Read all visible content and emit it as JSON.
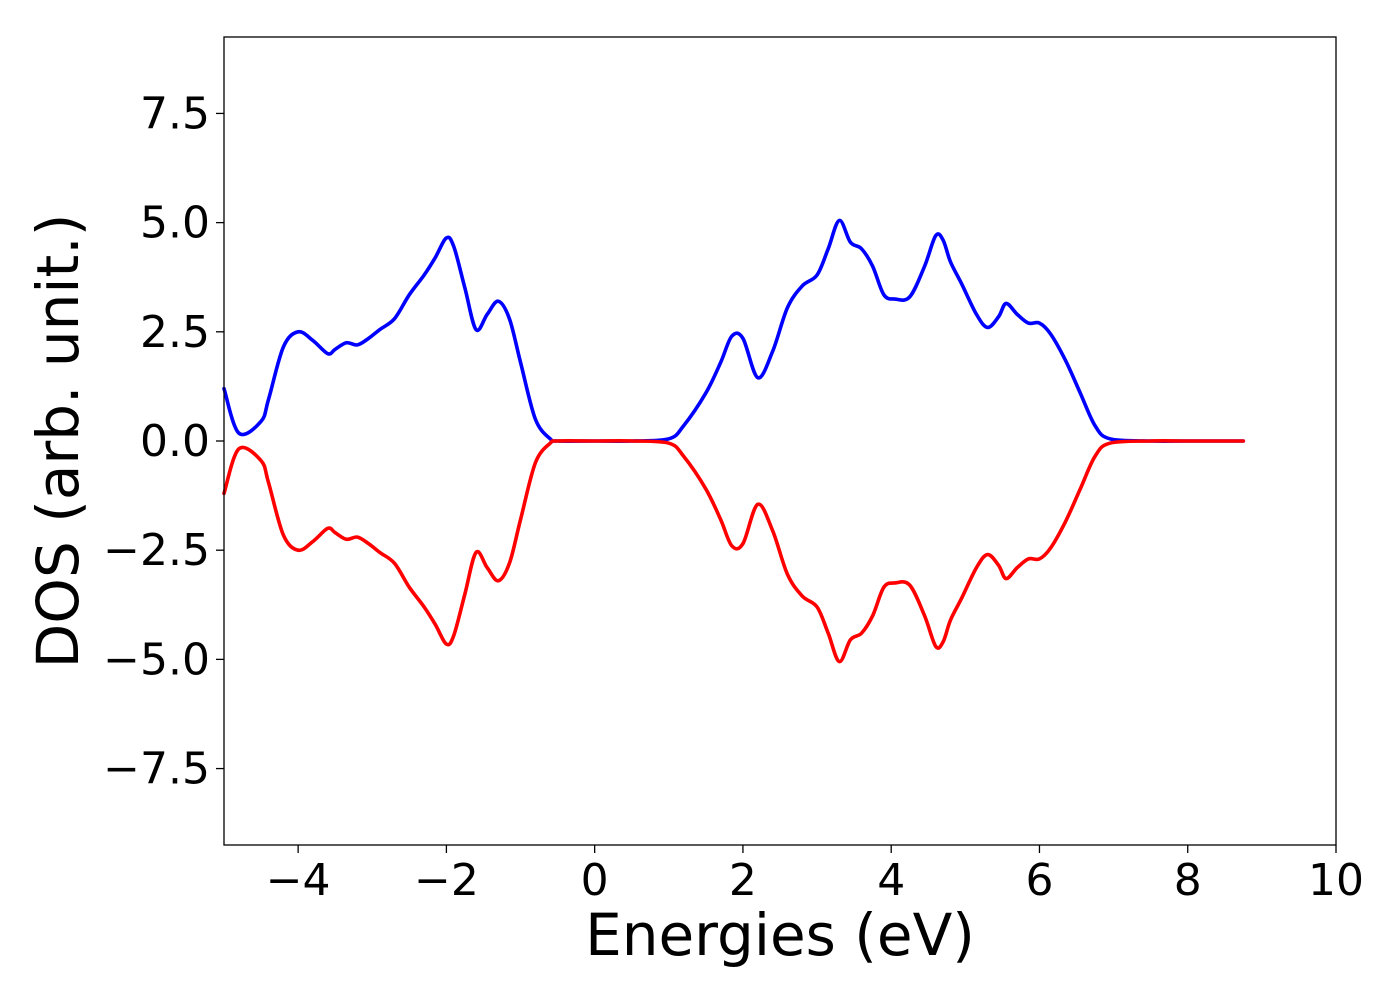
{
  "chart_data": {
    "type": "line",
    "title": "",
    "xlabel": "Energies (eV)",
    "ylabel": "DOS (arb. unit.)",
    "xlim": [
      -5,
      10
    ],
    "ylim": [
      -9.25,
      9.25
    ],
    "grid": false,
    "legend": "none",
    "x_ticks": [
      -4,
      -2,
      0,
      2,
      4,
      6,
      8,
      10
    ],
    "x_tick_labels": [
      "−4",
      "−2",
      "0",
      "2",
      "4",
      "6",
      "8",
      "10"
    ],
    "y_ticks": [
      7.5,
      5.0,
      2.5,
      0.0,
      -2.5,
      -5.0,
      -7.5
    ],
    "y_tick_labels": [
      "7.5",
      "5.0",
      "2.5",
      "0.0",
      "−2.5",
      "−5.0",
      "−7.5"
    ],
    "x": [
      -5.0,
      -4.8,
      -4.5,
      -4.4,
      -4.2,
      -4.0,
      -3.8,
      -3.6,
      -3.5,
      -3.35,
      -3.2,
      -3.05,
      -2.9,
      -2.7,
      -2.5,
      -2.3,
      -2.15,
      -2.0,
      -1.9,
      -1.75,
      -1.6,
      -1.45,
      -1.3,
      -1.15,
      -1.0,
      -0.8,
      -0.6,
      -0.5,
      0.0,
      0.5,
      1.0,
      1.2,
      1.5,
      1.7,
      1.85,
      2.0,
      2.2,
      2.4,
      2.6,
      2.8,
      3.0,
      3.15,
      3.3,
      3.45,
      3.6,
      3.75,
      3.9,
      4.05,
      4.25,
      4.45,
      4.6,
      4.7,
      4.8,
      4.95,
      5.15,
      5.3,
      5.45,
      5.55,
      5.7,
      5.85,
      6.0,
      6.15,
      6.35,
      6.55,
      6.75,
      6.95,
      7.5,
      8.0,
      8.75
    ],
    "series": [
      {
        "color": "#0000ff",
        "values": [
          1.2,
          0.18,
          0.45,
          0.95,
          2.15,
          2.5,
          2.3,
          2.0,
          2.1,
          2.25,
          2.2,
          2.35,
          2.55,
          2.8,
          3.35,
          3.8,
          4.2,
          4.65,
          4.45,
          3.5,
          2.55,
          2.9,
          3.2,
          2.8,
          1.8,
          0.5,
          0.05,
          0.0,
          0.0,
          0.0,
          0.05,
          0.35,
          1.1,
          1.8,
          2.4,
          2.35,
          1.45,
          2.05,
          3.05,
          3.55,
          3.8,
          4.4,
          5.05,
          4.55,
          4.4,
          4.0,
          3.35,
          3.25,
          3.3,
          4.0,
          4.7,
          4.6,
          4.1,
          3.6,
          2.9,
          2.6,
          2.85,
          3.15,
          2.9,
          2.7,
          2.7,
          2.45,
          1.85,
          1.1,
          0.35,
          0.05,
          0.0,
          0.0,
          0.0
        ]
      },
      {
        "color": "#ff0000",
        "values": [
          -1.2,
          -0.18,
          -0.45,
          -0.95,
          -2.15,
          -2.5,
          -2.3,
          -2.0,
          -2.1,
          -2.25,
          -2.2,
          -2.35,
          -2.55,
          -2.8,
          -3.35,
          -3.8,
          -4.2,
          -4.65,
          -4.45,
          -3.5,
          -2.55,
          -2.9,
          -3.2,
          -2.8,
          -1.8,
          -0.5,
          -0.05,
          0.0,
          0.0,
          0.0,
          -0.05,
          -0.35,
          -1.1,
          -1.8,
          -2.4,
          -2.35,
          -1.45,
          -2.05,
          -3.05,
          -3.55,
          -3.8,
          -4.4,
          -5.05,
          -4.55,
          -4.4,
          -4.0,
          -3.35,
          -3.25,
          -3.3,
          -4.0,
          -4.7,
          -4.6,
          -4.1,
          -3.6,
          -2.9,
          -2.6,
          -2.85,
          -3.15,
          -2.9,
          -2.7,
          -2.7,
          -2.45,
          -1.85,
          -1.1,
          -0.35,
          -0.05,
          0.0,
          0.0,
          0.0
        ]
      }
    ]
  }
}
